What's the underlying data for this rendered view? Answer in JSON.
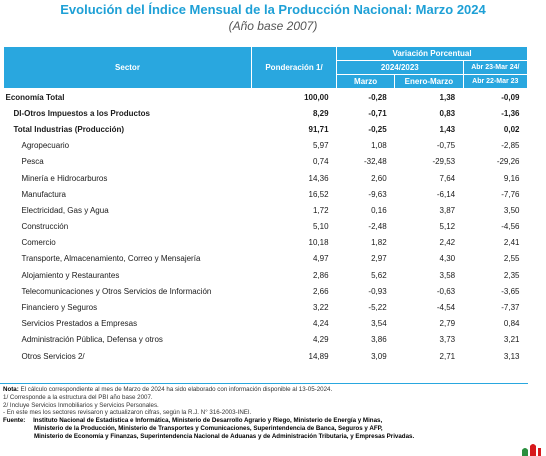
{
  "title": "Evolución del Índice Mensual de la Producción Nacional: Marzo 2024",
  "subtitle": "(Año base 2007)",
  "header": {
    "sector": "Sector",
    "ponderacion": "Ponderación 1/",
    "variacion": "Variación Porcentual",
    "periodo": "2024/2023",
    "marzo": "Marzo",
    "enero_marzo": "Enero-Marzo",
    "abr1": "Abr 23-Mar 24/",
    "abr2": "Abr 22-Mar 23"
  },
  "rows": [
    {
      "sector": "Economía Total",
      "pond": "100,00",
      "marzo": "-0,28",
      "ene_mar": "1,38",
      "abr": "-0,09"
    },
    {
      "sector": "DI-Otros Impuestos a los Productos",
      "pond": "8,29",
      "marzo": "-0,71",
      "ene_mar": "0,83",
      "abr": "-1,36"
    },
    {
      "sector": "Total  Industrias (Producción)",
      "pond": "91,71",
      "marzo": "-0,25",
      "ene_mar": "1,43",
      "abr": "0,02"
    },
    {
      "sector": "Agropecuario",
      "pond": "5,97",
      "marzo": "1,08",
      "ene_mar": "-0,75",
      "abr": "-2,85"
    },
    {
      "sector": "Pesca",
      "pond": "0,74",
      "marzo": "-32,48",
      "ene_mar": "-29,53",
      "abr": "-29,26"
    },
    {
      "sector": "Minería e Hidrocarburos",
      "pond": "14,36",
      "marzo": "2,60",
      "ene_mar": "7,64",
      "abr": "9,16"
    },
    {
      "sector": "Manufactura",
      "pond": "16,52",
      "marzo": "-9,63",
      "ene_mar": "-6,14",
      "abr": "-7,76"
    },
    {
      "sector": "Electricidad, Gas y Agua",
      "pond": "1,72",
      "marzo": "0,16",
      "ene_mar": "3,87",
      "abr": "3,50"
    },
    {
      "sector": "Construcción",
      "pond": "5,10",
      "marzo": "-2,48",
      "ene_mar": "5,12",
      "abr": "-4,56"
    },
    {
      "sector": "Comercio",
      "pond": "10,18",
      "marzo": "1,82",
      "ene_mar": "2,42",
      "abr": "2,41"
    },
    {
      "sector": "Transporte, Almacenamiento, Correo y Mensajería",
      "pond": "4,97",
      "marzo": "2,97",
      "ene_mar": "4,30",
      "abr": "2,55"
    },
    {
      "sector": "Alojamiento y Restaurantes",
      "pond": "2,86",
      "marzo": "5,62",
      "ene_mar": "3,58",
      "abr": "2,35"
    },
    {
      "sector": "Telecomunicaciones y Otros Servicios de Información",
      "pond": "2,66",
      "marzo": "-0,93",
      "ene_mar": "-0,63",
      "abr": "-3,65"
    },
    {
      "sector": "Financiero y Seguros",
      "pond": "3,22",
      "marzo": "-5,22",
      "ene_mar": "-4,54",
      "abr": "-7,37"
    },
    {
      "sector": "Servicios Prestados a Empresas",
      "pond": "4,24",
      "marzo": "3,54",
      "ene_mar": "2,79",
      "abr": "0,84"
    },
    {
      "sector": "Administración Pública, Defensa y otros",
      "pond": "4,29",
      "marzo": "3,86",
      "ene_mar": "3,73",
      "abr": "3,21"
    },
    {
      "sector": "Otros Servicios 2/",
      "pond": "14,89",
      "marzo": "3,09",
      "ene_mar": "2,71",
      "abr": "3,13"
    }
  ],
  "notes": {
    "nota_label": "Nota:",
    "nota": "El cálculo correspondiente al mes de Marzo de 2024 ha sido elaborado con información disponible al 13-05-2024.",
    "n1": "1/ Corresponde a la estructura del PBI año base 2007.",
    "n2": "2/ Incluye Servicios Inmobiliarios y Servicios Personales.",
    "n3": "- En este mes los sectores revisaron y actualizaron cifras, según la R.J. N° 316-2003-INEI.",
    "fuente_label": "Fuente:",
    "fuente1": "Instituto Nacional de Estadística e Informática, Ministerio de Desarrollo Agrario y Riego, Ministerio de Energía y Minas,",
    "fuente2": "Ministerio de la Producción, Ministerio de Transportes y Comunicaciones, Superintendencia de Banca, Seguros y AFP,",
    "fuente3": "Ministerio de Economía y Finanzas, Superintendencia Nacional de Aduanas y de Administración Tributaria, y Empresas Privadas."
  },
  "colors": {
    "accent": "#29a7df",
    "title": "#1ea0d6",
    "logo": "#d7191c"
  }
}
